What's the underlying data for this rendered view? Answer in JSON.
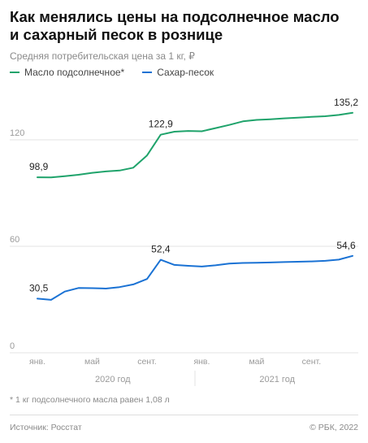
{
  "header": {
    "title_line1": "Как менялись цены на подсолнечное масло",
    "title_line2": "и сахарный песок в рознице",
    "subtitle": "Средняя потребительская цена за 1 кг, ₽"
  },
  "legend": {
    "oil_label": "Масло подсолнечное*",
    "sugar_label": "Сахар-песок"
  },
  "colors": {
    "oil": "#1fa36b",
    "sugar": "#1a72d4",
    "grid": "#e3e3e3",
    "axis_text": "#9a9a9a"
  },
  "chart_data": {
    "type": "line",
    "x": [
      "2020-01",
      "2020-02",
      "2020-03",
      "2020-04",
      "2020-05",
      "2020-06",
      "2020-07",
      "2020-08",
      "2020-09",
      "2020-10",
      "2020-11",
      "2020-12",
      "2021-01",
      "2021-02",
      "2021-03",
      "2021-04",
      "2021-05",
      "2021-06",
      "2021-07",
      "2021-08",
      "2021-09",
      "2021-10",
      "2021-11",
      "2021-12"
    ],
    "xtick_labels": [
      {
        "x": "2020-01",
        "label": "янв."
      },
      {
        "x": "2020-05",
        "label": "май"
      },
      {
        "x": "2020-09",
        "label": "сент."
      },
      {
        "x": "2021-01",
        "label": "янв."
      },
      {
        "x": "2021-05",
        "label": "май"
      },
      {
        "x": "2021-09",
        "label": "сент."
      }
    ],
    "year_labels": [
      {
        "from": "2020-01",
        "to": "2020-12",
        "label": "2020 год"
      },
      {
        "from": "2021-01",
        "to": "2021-12",
        "label": "2021 год"
      }
    ],
    "yticks": [
      0,
      60,
      120
    ],
    "ytick_labels": [
      "0",
      "60",
      "120"
    ],
    "ylim": [
      0,
      140
    ],
    "grid": true,
    "series": [
      {
        "name": "Масло подсолнечное*",
        "color": "#1fa36b",
        "values": [
          98.9,
          98.8,
          99.5,
          100.3,
          101.4,
          102.2,
          102.7,
          104.3,
          111.2,
          122.9,
          124.6,
          125.0,
          124.8,
          126.6,
          128.4,
          130.4,
          131.2,
          131.6,
          132.1,
          132.5,
          132.9,
          133.3,
          134.0,
          135.2
        ],
        "labels": [
          {
            "index": 0,
            "text": "98,9"
          },
          {
            "index": 9,
            "text": "122,9"
          },
          {
            "index": 23,
            "text": "135,2"
          }
        ]
      },
      {
        "name": "Сахар-песок",
        "color": "#1a72d4",
        "values": [
          30.5,
          29.8,
          34.5,
          36.5,
          36.4,
          36.2,
          37.0,
          38.5,
          41.6,
          52.4,
          49.5,
          49.0,
          48.6,
          49.3,
          50.3,
          50.6,
          50.7,
          50.9,
          51.1,
          51.3,
          51.5,
          51.8,
          52.5,
          54.6
        ],
        "labels": [
          {
            "index": 0,
            "text": "30,5"
          },
          {
            "index": 9,
            "text": "52,4"
          },
          {
            "index": 23,
            "text": "54,6"
          }
        ]
      }
    ]
  },
  "footnote": "* 1 кг подсолнечного масла равен 1,08 л",
  "footer": {
    "source": "Источник: Росстат",
    "copyright": "© РБК, 2022"
  }
}
